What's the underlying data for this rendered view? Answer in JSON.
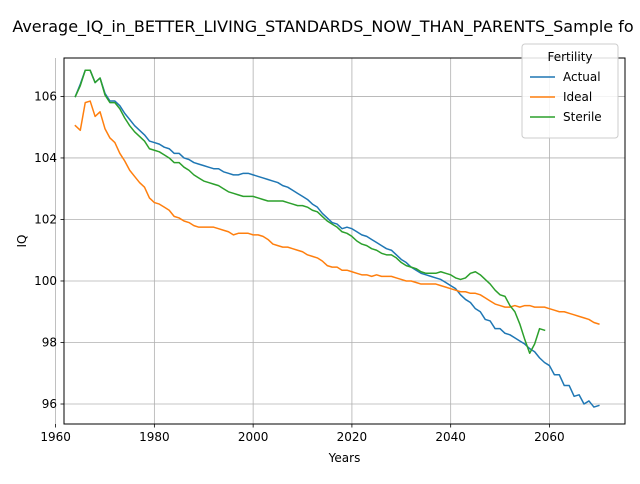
{
  "chart_data": {
    "type": "line",
    "title": "Average_IQ_in_BETTER_LIVING_STANDARDS_NOW_THAN_PARENTS_Sample fo",
    "xlabel": "Years",
    "ylabel": "IQ",
    "xlim": [
      1961.7,
      2075.3
    ],
    "ylim": [
      95.35,
      107.25
    ],
    "xticks": [
      1960,
      1980,
      2000,
      2020,
      2040,
      2060
    ],
    "yticks": [
      96,
      98,
      100,
      102,
      104,
      106
    ],
    "grid": true,
    "legend": {
      "title": "Fertility",
      "position": "upper right"
    },
    "series": [
      {
        "name": "Actual",
        "color": "#1f77b4",
        "points": [
          [
            1964,
            106.0
          ],
          [
            1965,
            106.4
          ],
          [
            1966,
            106.85
          ],
          [
            1967,
            106.85
          ],
          [
            1968,
            106.45
          ],
          [
            1969,
            106.6
          ],
          [
            1970,
            106.1
          ],
          [
            1971,
            105.85
          ],
          [
            1972,
            105.85
          ],
          [
            1973,
            105.7
          ],
          [
            1974,
            105.45
          ],
          [
            1975,
            105.25
          ],
          [
            1976,
            105.05
          ],
          [
            1977,
            104.9
          ],
          [
            1978,
            104.75
          ],
          [
            1979,
            104.55
          ],
          [
            1980,
            104.5
          ],
          [
            1981,
            104.45
          ],
          [
            1982,
            104.35
          ],
          [
            1983,
            104.3
          ],
          [
            1984,
            104.15
          ],
          [
            1985,
            104.15
          ],
          [
            1986,
            104.0
          ],
          [
            1987,
            103.95
          ],
          [
            1988,
            103.85
          ],
          [
            1989,
            103.8
          ],
          [
            1990,
            103.75
          ],
          [
            1991,
            103.7
          ],
          [
            1992,
            103.65
          ],
          [
            1993,
            103.65
          ],
          [
            1994,
            103.55
          ],
          [
            1995,
            103.5
          ],
          [
            1996,
            103.45
          ],
          [
            1997,
            103.45
          ],
          [
            1998,
            103.5
          ],
          [
            1999,
            103.5
          ],
          [
            2000,
            103.45
          ],
          [
            2001,
            103.4
          ],
          [
            2002,
            103.35
          ],
          [
            2003,
            103.3
          ],
          [
            2004,
            103.25
          ],
          [
            2005,
            103.2
          ],
          [
            2006,
            103.1
          ],
          [
            2007,
            103.05
          ],
          [
            2008,
            102.95
          ],
          [
            2009,
            102.85
          ],
          [
            2010,
            102.75
          ],
          [
            2011,
            102.65
          ],
          [
            2012,
            102.5
          ],
          [
            2013,
            102.4
          ],
          [
            2014,
            102.2
          ],
          [
            2015,
            102.05
          ],
          [
            2016,
            101.9
          ],
          [
            2017,
            101.85
          ],
          [
            2018,
            101.7
          ],
          [
            2019,
            101.75
          ],
          [
            2020,
            101.7
          ],
          [
            2021,
            101.6
          ],
          [
            2022,
            101.5
          ],
          [
            2023,
            101.45
          ],
          [
            2024,
            101.35
          ],
          [
            2025,
            101.25
          ],
          [
            2026,
            101.15
          ],
          [
            2027,
            101.05
          ],
          [
            2028,
            101.0
          ],
          [
            2029,
            100.85
          ],
          [
            2030,
            100.7
          ],
          [
            2031,
            100.6
          ],
          [
            2032,
            100.45
          ],
          [
            2033,
            100.35
          ],
          [
            2034,
            100.25
          ],
          [
            2035,
            100.2
          ],
          [
            2036,
            100.15
          ],
          [
            2037,
            100.1
          ],
          [
            2038,
            100.05
          ],
          [
            2039,
            99.95
          ],
          [
            2040,
            99.85
          ],
          [
            2041,
            99.75
          ],
          [
            2042,
            99.55
          ],
          [
            2043,
            99.4
          ],
          [
            2044,
            99.3
          ],
          [
            2045,
            99.1
          ],
          [
            2046,
            99.0
          ],
          [
            2047,
            98.75
          ],
          [
            2048,
            98.7
          ],
          [
            2049,
            98.45
          ],
          [
            2050,
            98.45
          ],
          [
            2051,
            98.3
          ],
          [
            2052,
            98.25
          ],
          [
            2053,
            98.15
          ],
          [
            2054,
            98.05
          ],
          [
            2055,
            97.95
          ],
          [
            2056,
            97.8
          ],
          [
            2057,
            97.7
          ],
          [
            2058,
            97.5
          ],
          [
            2059,
            97.35
          ],
          [
            2060,
            97.25
          ],
          [
            2061,
            96.95
          ],
          [
            2062,
            96.95
          ],
          [
            2063,
            96.6
          ],
          [
            2064,
            96.6
          ],
          [
            2065,
            96.25
          ],
          [
            2066,
            96.3
          ],
          [
            2067,
            96.0
          ],
          [
            2068,
            96.1
          ],
          [
            2069,
            95.9
          ],
          [
            2070,
            95.95
          ]
        ]
      },
      {
        "name": "Ideal",
        "color": "#ff7f0e",
        "points": [
          [
            1964,
            105.05
          ],
          [
            1965,
            104.9
          ],
          [
            1966,
            105.8
          ],
          [
            1967,
            105.85
          ],
          [
            1968,
            105.35
          ],
          [
            1969,
            105.5
          ],
          [
            1970,
            104.95
          ],
          [
            1971,
            104.65
          ],
          [
            1972,
            104.5
          ],
          [
            1973,
            104.15
          ],
          [
            1974,
            103.9
          ],
          [
            1975,
            103.6
          ],
          [
            1976,
            103.4
          ],
          [
            1977,
            103.2
          ],
          [
            1978,
            103.05
          ],
          [
            1979,
            102.7
          ],
          [
            1980,
            102.55
          ],
          [
            1981,
            102.5
          ],
          [
            1982,
            102.4
          ],
          [
            1983,
            102.3
          ],
          [
            1984,
            102.1
          ],
          [
            1985,
            102.05
          ],
          [
            1986,
            101.95
          ],
          [
            1987,
            101.9
          ],
          [
            1988,
            101.8
          ],
          [
            1989,
            101.75
          ],
          [
            1990,
            101.75
          ],
          [
            1991,
            101.75
          ],
          [
            1992,
            101.75
          ],
          [
            1993,
            101.7
          ],
          [
            1994,
            101.65
          ],
          [
            1995,
            101.6
          ],
          [
            1996,
            101.5
          ],
          [
            1997,
            101.55
          ],
          [
            1998,
            101.55
          ],
          [
            1999,
            101.55
          ],
          [
            2000,
            101.5
          ],
          [
            2001,
            101.5
          ],
          [
            2002,
            101.45
          ],
          [
            2003,
            101.35
          ],
          [
            2004,
            101.2
          ],
          [
            2005,
            101.15
          ],
          [
            2006,
            101.1
          ],
          [
            2007,
            101.1
          ],
          [
            2008,
            101.05
          ],
          [
            2009,
            101.0
          ],
          [
            2010,
            100.95
          ],
          [
            2011,
            100.85
          ],
          [
            2012,
            100.8
          ],
          [
            2013,
            100.75
          ],
          [
            2014,
            100.65
          ],
          [
            2015,
            100.5
          ],
          [
            2016,
            100.45
          ],
          [
            2017,
            100.45
          ],
          [
            2018,
            100.35
          ],
          [
            2019,
            100.35
          ],
          [
            2020,
            100.3
          ],
          [
            2021,
            100.25
          ],
          [
            2022,
            100.2
          ],
          [
            2023,
            100.2
          ],
          [
            2024,
            100.15
          ],
          [
            2025,
            100.2
          ],
          [
            2026,
            100.15
          ],
          [
            2027,
            100.15
          ],
          [
            2028,
            100.15
          ],
          [
            2029,
            100.1
          ],
          [
            2030,
            100.05
          ],
          [
            2031,
            100.0
          ],
          [
            2032,
            100.0
          ],
          [
            2033,
            99.95
          ],
          [
            2034,
            99.9
          ],
          [
            2035,
            99.9
          ],
          [
            2036,
            99.9
          ],
          [
            2037,
            99.9
          ],
          [
            2038,
            99.85
          ],
          [
            2039,
            99.8
          ],
          [
            2040,
            99.75
          ],
          [
            2041,
            99.7
          ],
          [
            2042,
            99.65
          ],
          [
            2043,
            99.65
          ],
          [
            2044,
            99.6
          ],
          [
            2045,
            99.6
          ],
          [
            2046,
            99.55
          ],
          [
            2047,
            99.45
          ],
          [
            2048,
            99.35
          ],
          [
            2049,
            99.25
          ],
          [
            2050,
            99.2
          ],
          [
            2051,
            99.15
          ],
          [
            2052,
            99.15
          ],
          [
            2053,
            99.2
          ],
          [
            2054,
            99.15
          ],
          [
            2055,
            99.2
          ],
          [
            2056,
            99.2
          ],
          [
            2057,
            99.15
          ],
          [
            2058,
            99.15
          ],
          [
            2059,
            99.15
          ],
          [
            2060,
            99.1
          ],
          [
            2061,
            99.05
          ],
          [
            2062,
            99.0
          ],
          [
            2063,
            99.0
          ],
          [
            2064,
            98.95
          ],
          [
            2065,
            98.9
          ],
          [
            2066,
            98.85
          ],
          [
            2067,
            98.8
          ],
          [
            2068,
            98.75
          ],
          [
            2069,
            98.65
          ],
          [
            2070,
            98.6
          ]
        ]
      },
      {
        "name": "Sterile",
        "color": "#2ca02c",
        "points": [
          [
            1964,
            106.0
          ],
          [
            1965,
            106.35
          ],
          [
            1966,
            106.85
          ],
          [
            1967,
            106.85
          ],
          [
            1968,
            106.45
          ],
          [
            1969,
            106.6
          ],
          [
            1970,
            106.05
          ],
          [
            1971,
            105.8
          ],
          [
            1972,
            105.8
          ],
          [
            1973,
            105.6
          ],
          [
            1974,
            105.3
          ],
          [
            1975,
            105.05
          ],
          [
            1976,
            104.85
          ],
          [
            1977,
            104.7
          ],
          [
            1978,
            104.55
          ],
          [
            1979,
            104.3
          ],
          [
            1980,
            104.25
          ],
          [
            1981,
            104.2
          ],
          [
            1982,
            104.1
          ],
          [
            1983,
            104.0
          ],
          [
            1984,
            103.85
          ],
          [
            1985,
            103.85
          ],
          [
            1986,
            103.7
          ],
          [
            1987,
            103.6
          ],
          [
            1988,
            103.45
          ],
          [
            1989,
            103.35
          ],
          [
            1990,
            103.25
          ],
          [
            1991,
            103.2
          ],
          [
            1992,
            103.15
          ],
          [
            1993,
            103.1
          ],
          [
            1994,
            103.0
          ],
          [
            1995,
            102.9
          ],
          [
            1996,
            102.85
          ],
          [
            1997,
            102.8
          ],
          [
            1998,
            102.75
          ],
          [
            1999,
            102.75
          ],
          [
            2000,
            102.75
          ],
          [
            2001,
            102.7
          ],
          [
            2002,
            102.65
          ],
          [
            2003,
            102.6
          ],
          [
            2004,
            102.6
          ],
          [
            2005,
            102.6
          ],
          [
            2006,
            102.6
          ],
          [
            2007,
            102.55
          ],
          [
            2008,
            102.5
          ],
          [
            2009,
            102.45
          ],
          [
            2010,
            102.45
          ],
          [
            2011,
            102.4
          ],
          [
            2012,
            102.3
          ],
          [
            2013,
            102.25
          ],
          [
            2014,
            102.1
          ],
          [
            2015,
            101.95
          ],
          [
            2016,
            101.85
          ],
          [
            2017,
            101.75
          ],
          [
            2018,
            101.6
          ],
          [
            2019,
            101.55
          ],
          [
            2020,
            101.45
          ],
          [
            2021,
            101.3
          ],
          [
            2022,
            101.2
          ],
          [
            2023,
            101.15
          ],
          [
            2024,
            101.05
          ],
          [
            2025,
            101.0
          ],
          [
            2026,
            100.9
          ],
          [
            2027,
            100.85
          ],
          [
            2028,
            100.85
          ],
          [
            2029,
            100.75
          ],
          [
            2030,
            100.6
          ],
          [
            2031,
            100.5
          ],
          [
            2032,
            100.45
          ],
          [
            2033,
            100.4
          ],
          [
            2034,
            100.3
          ],
          [
            2035,
            100.25
          ],
          [
            2036,
            100.25
          ],
          [
            2037,
            100.25
          ],
          [
            2038,
            100.3
          ],
          [
            2039,
            100.25
          ],
          [
            2040,
            100.2
          ],
          [
            2041,
            100.1
          ],
          [
            2042,
            100.05
          ],
          [
            2043,
            100.1
          ],
          [
            2044,
            100.25
          ],
          [
            2045,
            100.3
          ],
          [
            2046,
            100.2
          ],
          [
            2047,
            100.05
          ],
          [
            2048,
            99.9
          ],
          [
            2049,
            99.7
          ],
          [
            2050,
            99.55
          ],
          [
            2051,
            99.5
          ],
          [
            2052,
            99.2
          ],
          [
            2053,
            99.0
          ],
          [
            2054,
            98.6
          ],
          [
            2055,
            98.1
          ],
          [
            2056,
            97.65
          ],
          [
            2057,
            97.95
          ],
          [
            2058,
            98.45
          ],
          [
            2059,
            98.4
          ]
        ]
      }
    ]
  }
}
